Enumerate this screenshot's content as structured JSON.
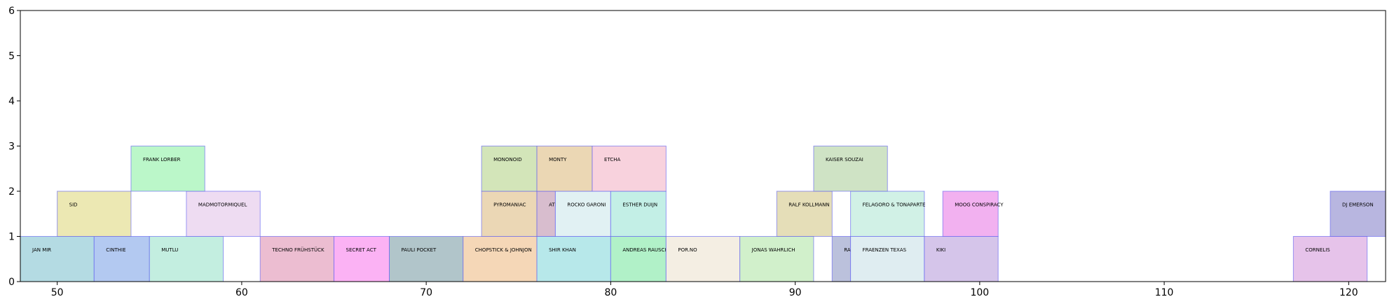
{
  "chart_data": {
    "type": "bar",
    "title": "",
    "xlabel": "",
    "ylabel": "",
    "xlim": [
      48,
      122
    ],
    "ylim": [
      0,
      6
    ],
    "x_ticks": [
      50,
      60,
      70,
      80,
      90,
      100,
      110,
      120
    ],
    "y_ticks": [
      0,
      1,
      2,
      3,
      4,
      5,
      6
    ],
    "grid": false,
    "legend": "none",
    "edge_color": "#5b5bf0",
    "bars": [
      {
        "label": "JAN MIR",
        "start": 48,
        "end": 52,
        "level": 0,
        "color": "#b4dbe3"
      },
      {
        "label": "CINTHIE",
        "start": 52,
        "end": 55,
        "level": 0,
        "color": "#b3c9f1"
      },
      {
        "label": "MUTLU",
        "start": 55,
        "end": 59,
        "level": 0,
        "color": "#c3eee0"
      },
      {
        "label": "TECHNO FRÜHSTÜCK",
        "start": 61,
        "end": 65,
        "level": 0,
        "color": "#ecbdd1"
      },
      {
        "label": "SECRET ACT",
        "start": 65,
        "end": 68,
        "level": 0,
        "color": "#fbb2f4"
      },
      {
        "label": "PAULI POCKET",
        "start": 68,
        "end": 72,
        "level": 0,
        "color": "#b1c5ca"
      },
      {
        "label": "CHOPSTICK & JOHNJON",
        "start": 72,
        "end": 76,
        "level": 0,
        "color": "#f5d7b7"
      },
      {
        "label": "SHIR KHAN",
        "start": 76,
        "end": 80,
        "level": 0,
        "color": "#b7e8ea"
      },
      {
        "label": "ANDREAS RAUSCHER",
        "start": 80,
        "end": 83,
        "level": 0,
        "color": "#b1f1c8"
      },
      {
        "label": "POR.NO",
        "start": 83,
        "end": 87,
        "level": 0,
        "color": "#f4eee3"
      },
      {
        "label": "JONAS WAHRLICH",
        "start": 87,
        "end": 91,
        "level": 0,
        "color": "#d1f0cb"
      },
      {
        "label": "RAZ OHARA",
        "start": 92,
        "end": 93,
        "level": 0,
        "color": "#bbc1dc"
      },
      {
        "label": "FRAENZEN TEXAS",
        "start": 93,
        "end": 97,
        "level": 0,
        "color": "#dfedf1"
      },
      {
        "label": "KIKI",
        "start": 97,
        "end": 101,
        "level": 0,
        "color": "#d5c5ea"
      },
      {
        "label": "CORNELIS",
        "start": 117,
        "end": 121,
        "level": 0,
        "color": "#e6c3ea"
      },
      {
        "label": "SID",
        "start": 50,
        "end": 54,
        "level": 1,
        "color": "#ece8b3"
      },
      {
        "label": "MADMOTORMIQUEL",
        "start": 57,
        "end": 61,
        "level": 1,
        "color": "#eedcf2"
      },
      {
        "label": "PYROMANIAC",
        "start": 73,
        "end": 76,
        "level": 1,
        "color": "#ebd7b5"
      },
      {
        "label": "ATLANTIK",
        "start": 76,
        "end": 77,
        "level": 1,
        "color": "#d8bdce"
      },
      {
        "label": "ROCKO GARONI",
        "start": 77,
        "end": 80,
        "level": 1,
        "color": "#e1f1f3"
      },
      {
        "label": "ESTHER DUIJN",
        "start": 80,
        "end": 83,
        "level": 1,
        "color": "#c3efe6"
      },
      {
        "label": "RALF KOLLMANN",
        "start": 89,
        "end": 92,
        "level": 1,
        "color": "#e5deb8"
      },
      {
        "label": "FELAGORO & TONAPARTE",
        "start": 93,
        "end": 97,
        "level": 1,
        "color": "#d1f1e6"
      },
      {
        "label": "MOOG CONSPIRACY",
        "start": 98,
        "end": 101,
        "level": 1,
        "color": "#f2b1f0"
      },
      {
        "label": "DJ EMERSON",
        "start": 119,
        "end": 122,
        "level": 1,
        "color": "#b8b6e0"
      },
      {
        "label": "FRANK LORBER",
        "start": 54,
        "end": 58,
        "level": 2,
        "color": "#bbf7c9"
      },
      {
        "label": "MONONOID",
        "start": 73,
        "end": 76,
        "level": 2,
        "color": "#d3e5b9"
      },
      {
        "label": "MONTY",
        "start": 76,
        "end": 79,
        "level": 2,
        "color": "#ebd7b4"
      },
      {
        "label": "ETCHA",
        "start": 79,
        "end": 83,
        "level": 2,
        "color": "#f8d2dd"
      },
      {
        "label": "KAISER SOUZAI",
        "start": 91,
        "end": 95,
        "level": 2,
        "color": "#cfe3c5"
      }
    ]
  }
}
